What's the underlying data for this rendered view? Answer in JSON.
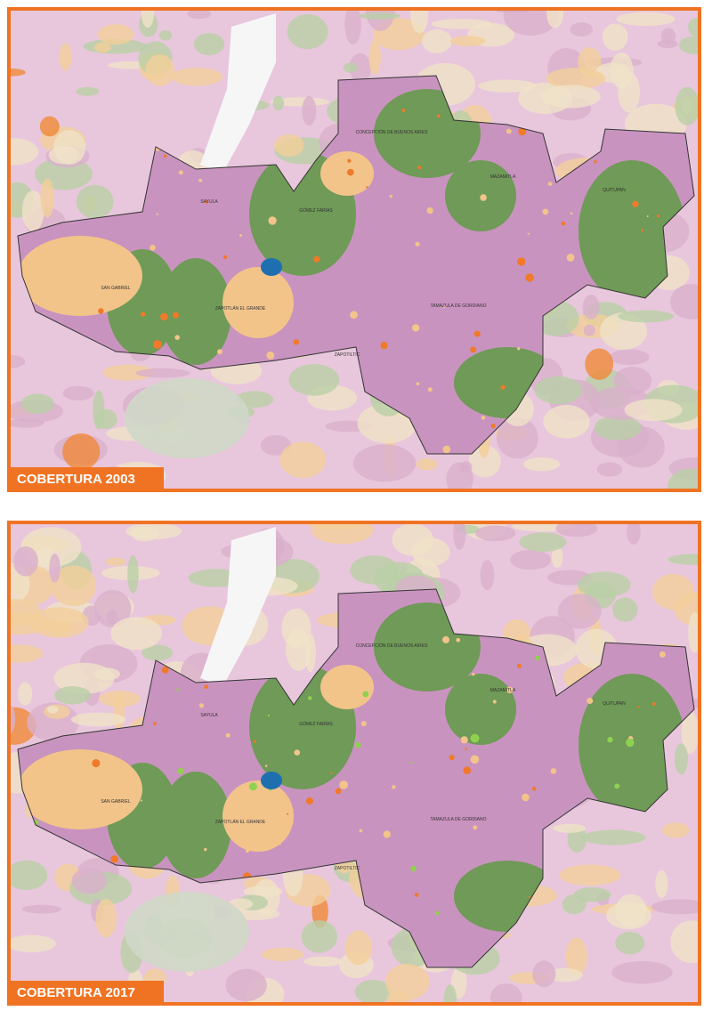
{
  "maps": [
    {
      "label": "COBERTURA 2003",
      "places": [
        "CONCEPCIÓN DE BUENOS AIRES",
        "SAYULA",
        "GÓMEZ FARÍAS",
        "MAZAMITLA",
        "QUITUPAN",
        "SAN GABRIEL",
        "ZAPOTLÁN EL GRANDE",
        "TAMAZULA DE GORDIANO",
        "ZAPOTILTIC"
      ]
    },
    {
      "label": "COBERTURA 2017",
      "places": [
        "CONCEPCIÓN DE BUENOS AIRES",
        "SAYULA",
        "GÓMEZ FARÍAS",
        "MAZAMITLA",
        "QUITUPAN",
        "SAN GABRIEL",
        "ZAPOTLÁN EL GRANDE",
        "TAMAZULA DE GORDIANO",
        "ZAPOTILTIC"
      ]
    }
  ]
}
